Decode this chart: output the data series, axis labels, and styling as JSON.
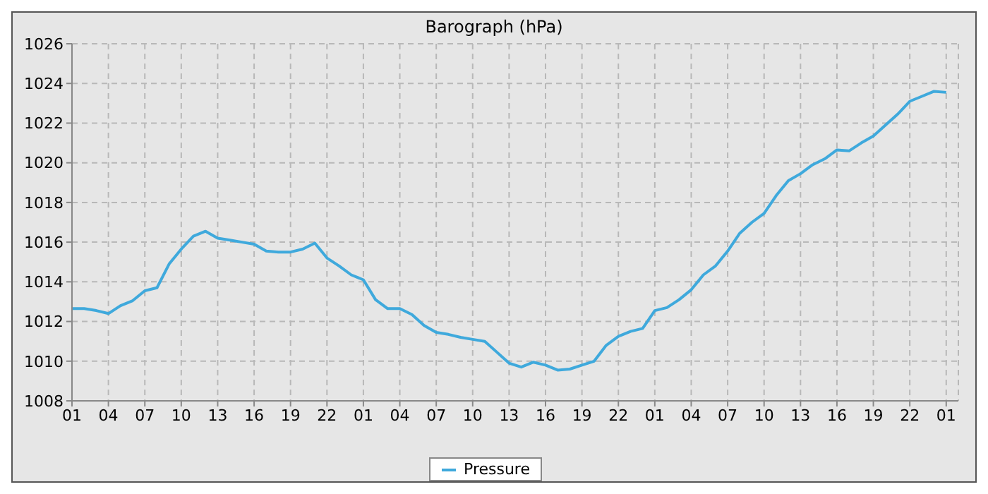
{
  "chart_data": {
    "type": "line",
    "title": "Barograph (hPa)",
    "categories": [
      "01",
      null,
      null,
      "04",
      null,
      null,
      "07",
      null,
      null,
      "10",
      null,
      null,
      "13",
      null,
      null,
      "16",
      null,
      null,
      "19",
      null,
      null,
      "22",
      null,
      null,
      "01",
      null,
      null,
      "04",
      null,
      null,
      "07",
      null,
      null,
      "10",
      null,
      null,
      "13",
      null,
      null,
      "16",
      null,
      null,
      "19",
      null,
      null,
      "22",
      null,
      null,
      "01",
      null,
      null,
      "04",
      null,
      null,
      "07",
      null,
      null,
      "10",
      null,
      null,
      "13",
      null,
      null,
      "16",
      null,
      null,
      "19",
      null,
      null,
      "22",
      null,
      null,
      "01"
    ],
    "series": [
      {
        "name": "Pressure",
        "color": "#3fa9dc",
        "values": [
          1012.65,
          1012.65,
          1012.55,
          1012.4,
          1012.8,
          1013.05,
          1013.55,
          1013.7,
          1014.9,
          1015.65,
          1016.3,
          1016.55,
          1016.2,
          1016.1,
          1016.0,
          1015.9,
          1015.55,
          1015.5,
          1015.5,
          1015.65,
          1015.95,
          1015.2,
          1014.8,
          1014.35,
          1014.1,
          1013.1,
          1012.65,
          1012.65,
          1012.35,
          1011.8,
          1011.45,
          1011.35,
          1011.2,
          1011.1,
          1011.0,
          1010.45,
          1009.9,
          1009.7,
          1009.95,
          1009.8,
          1009.55,
          1009.6,
          1009.8,
          1010.0,
          1010.8,
          1011.25,
          1011.5,
          1011.65,
          1012.55,
          1012.7,
          1013.1,
          1013.6,
          1014.35,
          1014.8,
          1015.55,
          1016.45,
          1017.0,
          1017.45,
          1018.35,
          1019.1,
          1019.45,
          1019.9,
          1020.2,
          1020.65,
          1020.6,
          1021.0,
          1021.35,
          1021.9,
          1022.45,
          1023.1,
          1023.35,
          1023.6,
          1023.55
        ]
      }
    ],
    "ylim": [
      1008,
      1026
    ],
    "yticks": [
      1008,
      1010,
      1012,
      1014,
      1016,
      1018,
      1020,
      1022,
      1024,
      1026
    ],
    "grid": true,
    "legend": "bottom",
    "marker": "none",
    "line_style": "solid"
  }
}
